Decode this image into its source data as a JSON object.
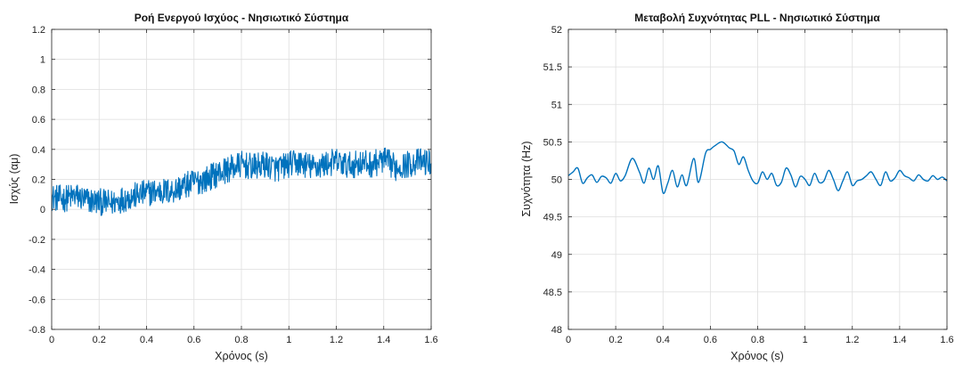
{
  "chart_data": [
    {
      "type": "line",
      "title": "Ροή Ενεργού Ισχύος - Νησιωτικό Σύστημα",
      "xlabel": "Χρόνος (s)",
      "ylabel": "Ισχύς (αμ)",
      "xlim": [
        0,
        1.6
      ],
      "ylim": [
        -0.8,
        1.2
      ],
      "xticks": [
        "0",
        "0.2",
        "0.4",
        "0.6",
        "0.8",
        "1",
        "1.2",
        "1.4",
        "1.6"
      ],
      "yticks": [
        "-0.8",
        "-0.6",
        "-0.4",
        "-0.2",
        "0",
        "0.2",
        "0.4",
        "0.6",
        "0.8",
        "1",
        "1.2"
      ],
      "grid": true,
      "color": "#0072BD",
      "series": [
        {
          "x": [
            0,
            0.05,
            0.1,
            0.15,
            0.2,
            0.25,
            0.3,
            0.35,
            0.4,
            0.45,
            0.5,
            0.55,
            0.6,
            0.65,
            0.7,
            0.75,
            0.8,
            0.85,
            0.9,
            0.95,
            1.0,
            1.05,
            1.1,
            1.15,
            1.2,
            1.25,
            1.3,
            1.35,
            1.4,
            1.45,
            1.5,
            1.55,
            1.6
          ],
          "y": [
            0.08,
            0.07,
            0.09,
            0.06,
            0.05,
            0.04,
            0.07,
            0.09,
            0.11,
            0.12,
            0.12,
            0.15,
            0.18,
            0.2,
            0.24,
            0.27,
            0.3,
            0.28,
            0.3,
            0.27,
            0.3,
            0.31,
            0.28,
            0.3,
            0.32,
            0.29,
            0.31,
            0.3,
            0.33,
            0.28,
            0.3,
            0.32,
            0.31
          ],
          "noise_amplitude": 0.09
        }
      ]
    },
    {
      "type": "line",
      "title": "Μεταβολή Συχνότητας PLL - Νησιωτικό Σύστημα",
      "xlabel": "Χρόνος (s)",
      "ylabel": "Συχνότητα (Hz)",
      "xlim": [
        0,
        1.6
      ],
      "ylim": [
        48,
        52
      ],
      "xticks": [
        "0",
        "0.2",
        "0.4",
        "0.6",
        "0.8",
        "1",
        "1.2",
        "1.4",
        "1.6"
      ],
      "yticks": [
        "48",
        "48.5",
        "49",
        "49.5",
        "50",
        "50.5",
        "51",
        "51.5",
        "52"
      ],
      "grid": true,
      "color": "#0072BD",
      "series": [
        {
          "x": [
            0,
            0.02,
            0.04,
            0.06,
            0.08,
            0.1,
            0.12,
            0.14,
            0.16,
            0.18,
            0.2,
            0.22,
            0.24,
            0.27,
            0.3,
            0.32,
            0.34,
            0.36,
            0.38,
            0.4,
            0.42,
            0.44,
            0.46,
            0.48,
            0.5,
            0.53,
            0.55,
            0.58,
            0.6,
            0.62,
            0.65,
            0.68,
            0.7,
            0.72,
            0.74,
            0.76,
            0.78,
            0.8,
            0.82,
            0.84,
            0.86,
            0.88,
            0.9,
            0.92,
            0.94,
            0.96,
            0.98,
            1.0,
            1.02,
            1.04,
            1.06,
            1.08,
            1.1,
            1.12,
            1.14,
            1.16,
            1.18,
            1.2,
            1.22,
            1.24,
            1.26,
            1.28,
            1.3,
            1.32,
            1.34,
            1.36,
            1.38,
            1.4,
            1.42,
            1.44,
            1.46,
            1.48,
            1.5,
            1.52,
            1.54,
            1.56,
            1.58,
            1.6
          ],
          "y": [
            50.05,
            50.1,
            50.15,
            49.95,
            50.02,
            50.06,
            49.96,
            50.04,
            50.02,
            49.95,
            50.08,
            49.98,
            50.05,
            50.28,
            50.1,
            49.95,
            50.15,
            50.0,
            50.18,
            49.82,
            49.95,
            50.12,
            49.9,
            50.06,
            49.92,
            50.28,
            49.96,
            50.35,
            50.4,
            50.45,
            50.5,
            50.42,
            50.38,
            50.2,
            50.3,
            50.12,
            49.98,
            49.95,
            50.1,
            50.0,
            50.08,
            49.92,
            49.96,
            50.15,
            50.06,
            49.9,
            50.04,
            50.0,
            49.92,
            50.08,
            49.96,
            49.98,
            50.12,
            50.0,
            49.85,
            49.98,
            50.1,
            49.92,
            49.98,
            50.0,
            50.05,
            50.1,
            50.0,
            49.92,
            50.1,
            49.98,
            50.02,
            50.12,
            50.05,
            50.02,
            49.98,
            50.06,
            50.0,
            49.98,
            50.05,
            50.0,
            50.03,
            49.98
          ]
        }
      ]
    }
  ]
}
